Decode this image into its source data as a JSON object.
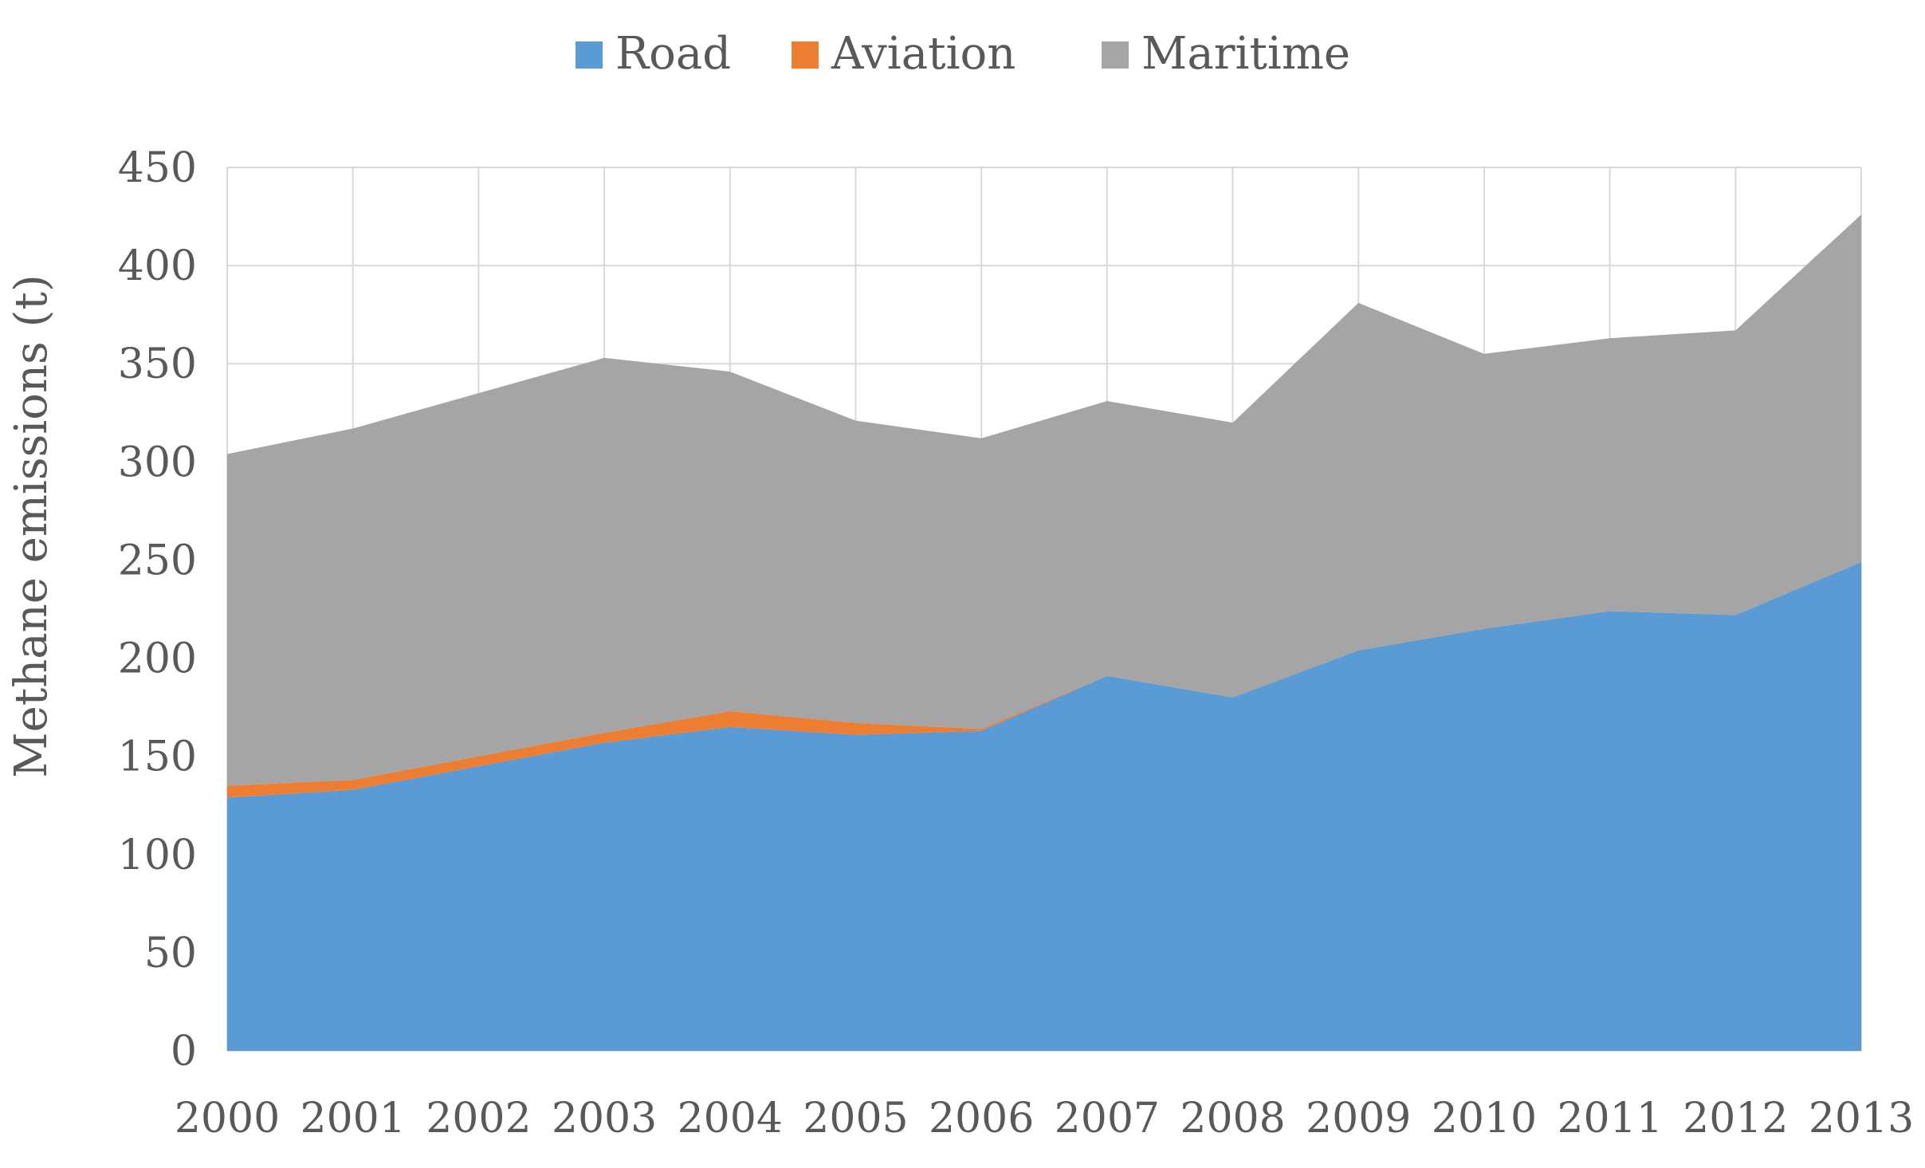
{
  "chart_data": {
    "type": "area",
    "stacked": true,
    "x": [
      "2000",
      "2001",
      "2002",
      "2003",
      "2004",
      "2005",
      "2006",
      "2007",
      "2008",
      "2009",
      "2010",
      "2011",
      "2012",
      "2013"
    ],
    "series": [
      {
        "name": "Road",
        "color": "#5B9BD5",
        "values": [
          129,
          133,
          145,
          157,
          165,
          161,
          163,
          191,
          180,
          204,
          215,
          224,
          222,
          249
        ]
      },
      {
        "name": "Aviation",
        "color": "#ED7D31",
        "values": [
          6,
          5,
          5,
          5,
          8,
          6,
          1,
          0,
          0,
          0,
          0,
          0,
          0,
          0
        ]
      },
      {
        "name": "Maritime",
        "color": "#A5A5A5",
        "values": [
          169,
          179,
          185,
          191,
          173,
          154,
          148,
          140,
          140,
          177,
          140,
          139,
          145,
          177
        ]
      }
    ],
    "title": "",
    "xlabel": "",
    "ylabel": "Methane emissions (t)",
    "ylim": [
      0,
      450
    ],
    "yticks": [
      0,
      50,
      100,
      150,
      200,
      250,
      300,
      350,
      400,
      450
    ],
    "grid": "vertical and horizontal",
    "legend_position": "top-center"
  }
}
